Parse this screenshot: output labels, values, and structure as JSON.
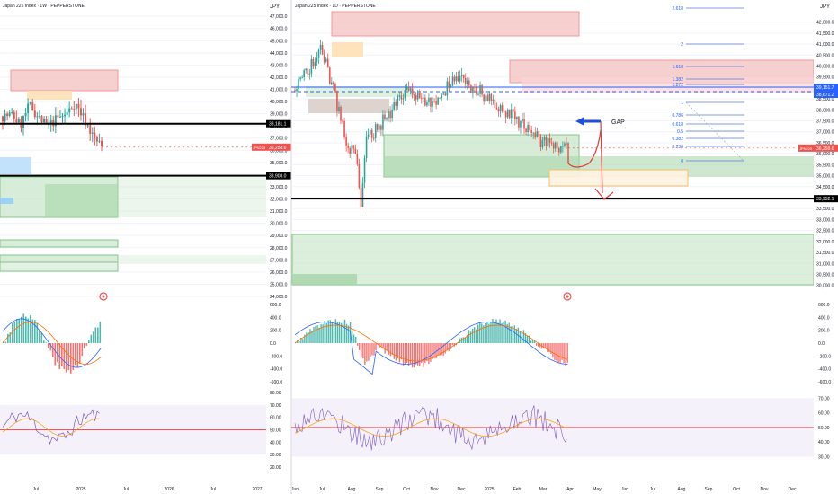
{
  "left_panel": {
    "title": "Japan 225 Index · 1W · PEPPERSTONE",
    "currency": "JPY",
    "price_ticks": [
      "47,000.0",
      "46,000.0",
      "45,000.0",
      "44,000.0",
      "43,000.0",
      "42,000.0",
      "41,000.0",
      "40,000.0",
      "39,000.0",
      "38,000.0",
      "37,000.0",
      "36,000.0",
      "35,000.0",
      "34,000.0",
      "33,000.0",
      "32,000.0",
      "31,000.0",
      "30,000.0",
      "29,000.0",
      "28,000.0",
      "27,000.0",
      "26,000.0",
      "25,000.0",
      "24,000.0"
    ],
    "price_range": [
      24000,
      47600
    ],
    "time_ticks": [
      "Jul",
      "2025",
      "Jul",
      "2026",
      "Jul",
      "2027"
    ],
    "labels": {
      "line1": "38,181.1",
      "line2": "33,908.0",
      "last_price": "JPN225",
      "last_price_value": "36,258.6"
    },
    "macd_ticks": [
      "600.0",
      "400.0",
      "200.0",
      "0.0",
      "-200.0",
      "-400.0",
      "-600.0"
    ],
    "rsi_ticks": [
      "80.00",
      "70.00",
      "60.00",
      "50.00",
      "40.00",
      "30.00",
      "20.00"
    ]
  },
  "right_panel": {
    "title": "Japan 225 Index · 1D · PEPPERSTONE",
    "currency": "JPY",
    "price_ticks": [
      "42,000.0",
      "41,500.0",
      "41,000.0",
      "40,500.0",
      "40,000.0",
      "39,500.0",
      "39,000.0",
      "38,500.0",
      "38,000.0",
      "37,500.0",
      "37,000.0",
      "36,500.0",
      "36,000.0",
      "35,500.0",
      "35,000.0",
      "34,500.0",
      "34,000.0",
      "33,500.0",
      "33,000.0",
      "32,500.0",
      "32,000.0",
      "31,500.0",
      "31,000.0",
      "30,500.0",
      "30,000.0"
    ],
    "price_range": [
      29700,
      42600
    ],
    "time_ticks": [
      "Jun",
      "Jul",
      "Aug",
      "Sep",
      "Oct",
      "Nov",
      "Dec",
      "2025",
      "Feb",
      "Mar",
      "Apr",
      "May",
      "Jun",
      "Jul",
      "Aug",
      "Sep",
      "Oct",
      "Nov",
      "Dec"
    ],
    "fib_levels": [
      "2.618",
      "2",
      "1.618",
      "1.382",
      "1.272",
      "1",
      "0.786",
      "0.618",
      "0.5",
      "0.382",
      "0.236",
      "0"
    ],
    "labels": {
      "line1": "33,952.1",
      "last_price": "JPN225",
      "last_price_value": "36,258.6",
      "tag1": "39,151.7",
      "tag2": "38,671.2"
    },
    "annotation": "GAP",
    "macd_ticks": [
      "600.0",
      "400.0",
      "200.0",
      "0.0",
      "-200.0",
      "-400.0",
      "-600.0"
    ],
    "rsi_ticks": [
      "70.00",
      "60.00",
      "50.00",
      "40.00",
      "30.00"
    ]
  },
  "colors": {
    "up": "#26a69a",
    "down": "#ef5350",
    "supply": "#f4c7c7",
    "demand": "#c8e6c9",
    "line": "#000000",
    "axis_text": "#131722",
    "hist_up": "#26a69a",
    "hist_down": "#ef5350"
  },
  "chart_data": [
    {
      "type": "candlestick",
      "title": "Japan 225 Index · 1W · PEPPERSTONE",
      "x": [
        "2024-04",
        "2024-05",
        "2024-06",
        "2024-07",
        "2024-08",
        "2024-09",
        "2024-10",
        "2024-11",
        "2024-12",
        "2025-01",
        "2025-02",
        "2025-03"
      ],
      "close": [
        38800,
        38900,
        38100,
        39700,
        38700,
        37900,
        38600,
        38900,
        39900,
        38700,
        37200,
        36258
      ],
      "ylabel": "JPY",
      "ylim": [
        24000,
        47600
      ],
      "horizontal_lines": [
        38181.1,
        33908.0
      ],
      "last_price": 36258.6
    },
    {
      "type": "candlestick",
      "title": "Japan 225 Index · 1D · PEPPERSTONE",
      "x": [
        "2024-06",
        "2024-07",
        "2024-08",
        "2024-09",
        "2024-10",
        "2024-11",
        "2024-12",
        "2025-01",
        "2025-02",
        "2025-03",
        "2025-04"
      ],
      "close": [
        38900,
        40800,
        36100,
        37100,
        38800,
        38300,
        39500,
        38600,
        37700,
        36600,
        36258
      ],
      "ylabel": "JPY",
      "ylim": [
        29700,
        42600
      ],
      "horizontal_lines": [
        33952.1
      ],
      "fib_levels": [
        "2.618",
        "2",
        "1.618",
        "1.382",
        "1.272",
        "1",
        "0.786",
        "0.618",
        "0.5",
        "0.382",
        "0.236",
        "0"
      ],
      "last_price": 36258.6
    }
  ]
}
